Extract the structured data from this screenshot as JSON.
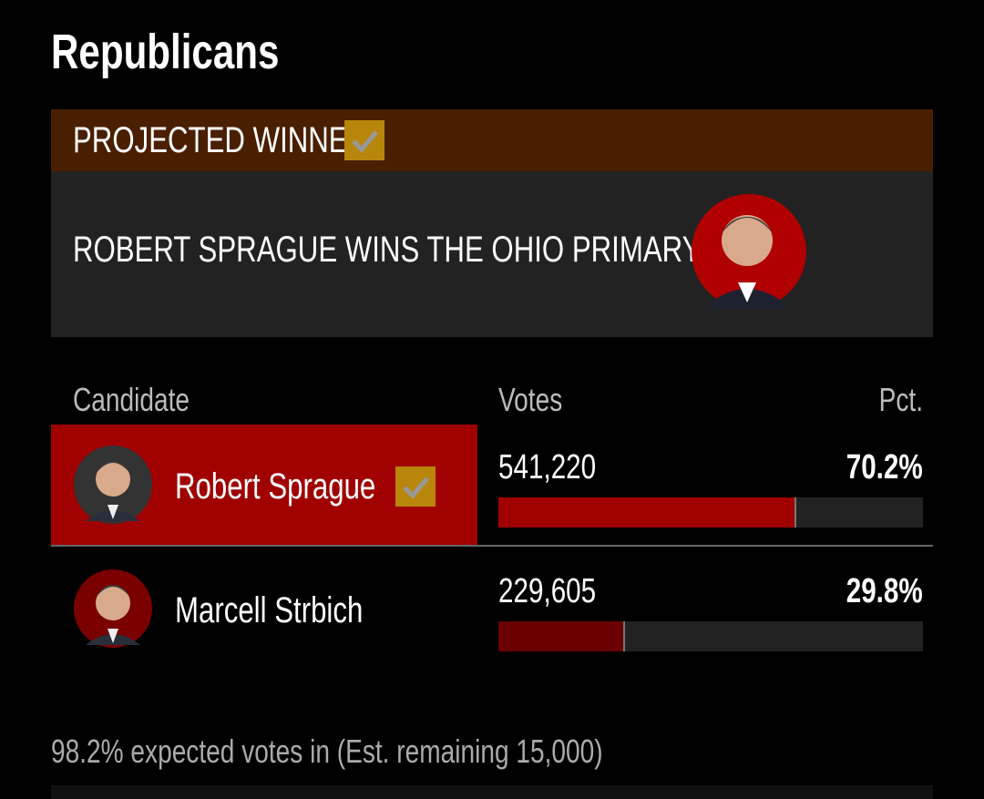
{
  "title": "Republicans",
  "banner": {
    "label": "PROJECTED WINNER",
    "headline": "ROBERT SPRAGUE WINS THE OHIO PRIMARY"
  },
  "table": {
    "headers": [
      "Candidate",
      "Votes",
      "Pct."
    ],
    "candidates": [
      {
        "name": "Robert Sprague",
        "votes": "541,220",
        "pct": 70.2,
        "pct_label": "70.2%",
        "winner": true
      },
      {
        "name": "Marcell Strbich",
        "votes": "229,605",
        "pct": 29.8,
        "pct_label": "29.8%",
        "winner": false
      }
    ]
  },
  "footer": "98.2% expected votes in (Est. remaining 15,000)"
}
